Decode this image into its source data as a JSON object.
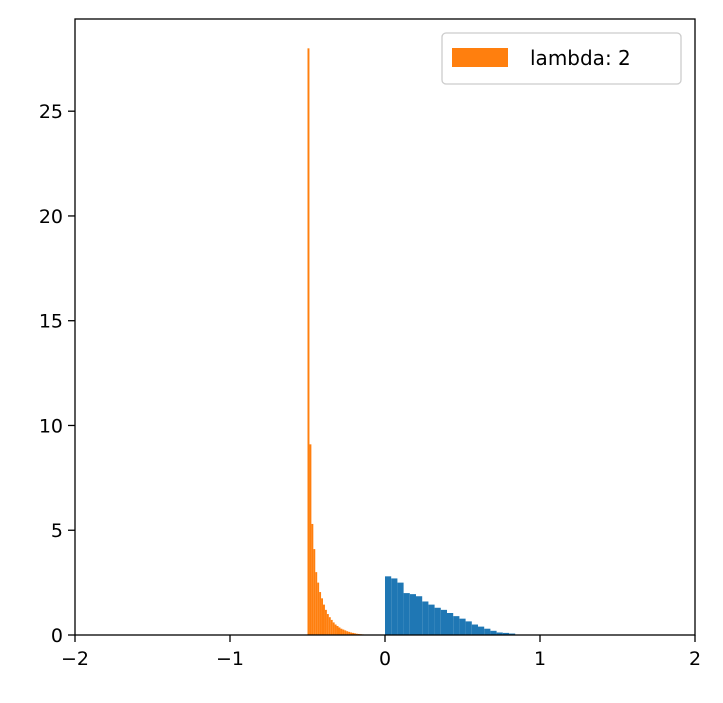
{
  "chart_data": {
    "type": "bar",
    "xlim": [
      -2,
      2
    ],
    "ylim": [
      0,
      29.4
    ],
    "x_ticks": [
      -2,
      -1,
      0,
      1,
      2
    ],
    "x_tick_labels": [
      "−2",
      "−1",
      "0",
      "1",
      "2"
    ],
    "y_ticks": [
      0,
      5,
      10,
      15,
      20,
      25
    ],
    "y_tick_labels": [
      "0",
      "5",
      "10",
      "15",
      "20",
      "25"
    ],
    "grid": false,
    "legend": {
      "placement": "top-right",
      "entries": [
        "lambda: 2"
      ]
    },
    "series": [
      {
        "name": "",
        "color": "#1f77b4",
        "bin_width": 0.04,
        "bins": [
          {
            "x0": 0.0,
            "y": 2.8
          },
          {
            "x0": 0.04,
            "y": 2.7
          },
          {
            "x0": 0.08,
            "y": 2.5
          },
          {
            "x0": 0.12,
            "y": 2.0
          },
          {
            "x0": 0.16,
            "y": 1.95
          },
          {
            "x0": 0.2,
            "y": 1.85
          },
          {
            "x0": 0.24,
            "y": 1.6
          },
          {
            "x0": 0.28,
            "y": 1.45
          },
          {
            "x0": 0.32,
            "y": 1.3
          },
          {
            "x0": 0.36,
            "y": 1.2
          },
          {
            "x0": 0.4,
            "y": 1.05
          },
          {
            "x0": 0.44,
            "y": 0.9
          },
          {
            "x0": 0.48,
            "y": 0.78
          },
          {
            "x0": 0.52,
            "y": 0.65
          },
          {
            "x0": 0.56,
            "y": 0.5
          },
          {
            "x0": 0.6,
            "y": 0.4
          },
          {
            "x0": 0.64,
            "y": 0.3
          },
          {
            "x0": 0.68,
            "y": 0.2
          },
          {
            "x0": 0.72,
            "y": 0.12
          },
          {
            "x0": 0.76,
            "y": 0.1
          },
          {
            "x0": 0.8,
            "y": 0.07
          }
        ]
      },
      {
        "name": "lambda: 2",
        "color": "#ff7f0e",
        "bin_width": 0.0125,
        "bins": [
          {
            "x0": -0.5,
            "y": 28.0
          },
          {
            "x0": -0.4875,
            "y": 9.1
          },
          {
            "x0": -0.475,
            "y": 5.3
          },
          {
            "x0": -0.4625,
            "y": 4.1
          },
          {
            "x0": -0.45,
            "y": 3.0
          },
          {
            "x0": -0.4375,
            "y": 2.5
          },
          {
            "x0": -0.425,
            "y": 2.05
          },
          {
            "x0": -0.4125,
            "y": 1.75
          },
          {
            "x0": -0.4,
            "y": 1.45
          },
          {
            "x0": -0.3875,
            "y": 1.2
          },
          {
            "x0": -0.375,
            "y": 1.0
          },
          {
            "x0": -0.3625,
            "y": 0.85
          },
          {
            "x0": -0.35,
            "y": 0.72
          },
          {
            "x0": -0.3375,
            "y": 0.6
          },
          {
            "x0": -0.325,
            "y": 0.5
          },
          {
            "x0": -0.3125,
            "y": 0.43
          },
          {
            "x0": -0.3,
            "y": 0.36
          },
          {
            "x0": -0.2875,
            "y": 0.3
          },
          {
            "x0": -0.275,
            "y": 0.26
          },
          {
            "x0": -0.2625,
            "y": 0.22
          },
          {
            "x0": -0.25,
            "y": 0.18
          },
          {
            "x0": -0.2375,
            "y": 0.15
          },
          {
            "x0": -0.225,
            "y": 0.12
          },
          {
            "x0": -0.2125,
            "y": 0.1
          },
          {
            "x0": -0.2,
            "y": 0.08
          },
          {
            "x0": -0.1875,
            "y": 0.06
          },
          {
            "x0": -0.175,
            "y": 0.05
          },
          {
            "x0": -0.1625,
            "y": 0.04
          },
          {
            "x0": -0.15,
            "y": 0.03
          },
          {
            "x0": -0.1375,
            "y": 0.02
          },
          {
            "x0": -0.125,
            "y": 0.02
          },
          {
            "x0": -0.1125,
            "y": 0.015
          },
          {
            "x0": -0.1,
            "y": 0.01
          }
        ]
      }
    ]
  }
}
